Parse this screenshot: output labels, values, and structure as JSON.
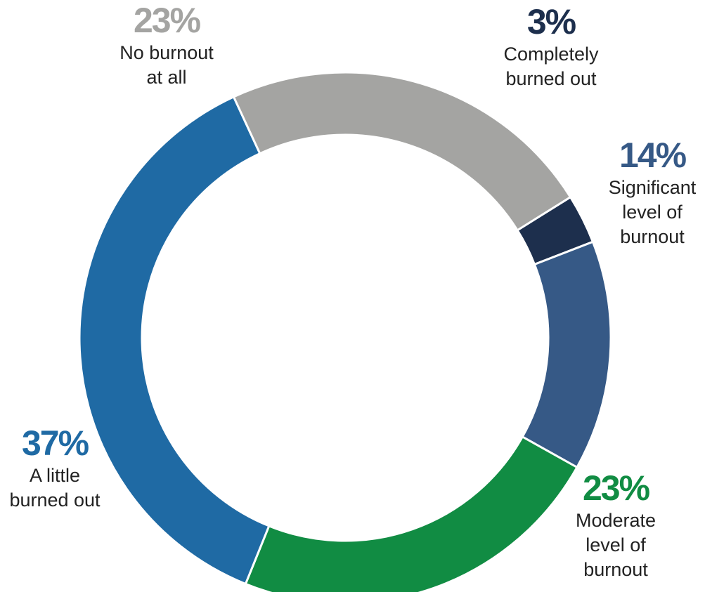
{
  "chart_data": {
    "type": "pie",
    "variant": "donut",
    "title": "",
    "slices": [
      {
        "label": "Completely burned out",
        "value": 3,
        "display": "3%",
        "color": "#1d2f4d"
      },
      {
        "label": "Significant level of burnout",
        "value": 14,
        "display": "14%",
        "color": "#365986"
      },
      {
        "label": "Moderate level of burnout",
        "value": 23,
        "display": "23%",
        "color": "#118c43"
      },
      {
        "label": "A little burned out",
        "value": 37,
        "display": "37%",
        "color": "#1f6aa4"
      },
      {
        "label": "No burnout at all",
        "value": 23,
        "display": "23%",
        "color": "#a4a4a2"
      }
    ],
    "legend": "none",
    "grid": false
  }
}
